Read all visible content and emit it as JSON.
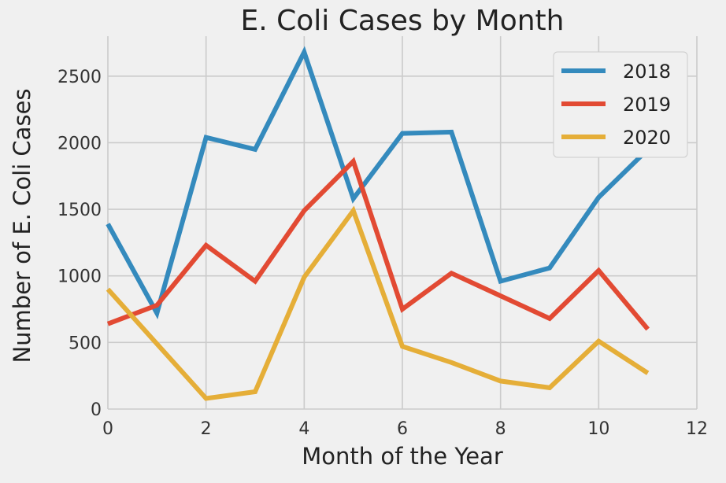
{
  "chart_data": {
    "type": "line",
    "title": "E. Coli Cases by Month",
    "xlabel": "Month of the Year",
    "ylabel": "Number of E. Coli Cases",
    "xlim": [
      0,
      12
    ],
    "ylim": [
      0,
      2800
    ],
    "xticks": [
      "0",
      "2",
      "4",
      "6",
      "8",
      "10",
      "12"
    ],
    "yticks": [
      "0",
      "500",
      "1000",
      "1500",
      "2000",
      "2500"
    ],
    "grid": true,
    "legend_position": "top-right",
    "x": [
      0,
      1,
      2,
      3,
      4,
      5,
      6,
      7,
      8,
      9,
      10,
      11
    ],
    "series": [
      {
        "name": "2018",
        "color": "#348ABD",
        "values": [
          1390,
          720,
          2040,
          1950,
          2680,
          1580,
          2070,
          2080,
          960,
          1060,
          1590,
          1950
        ]
      },
      {
        "name": "2019",
        "color": "#E24A33",
        "values": [
          640,
          780,
          1230,
          960,
          1490,
          1860,
          750,
          1020,
          850,
          680,
          1040,
          600
        ]
      },
      {
        "name": "2020",
        "color": "#E5AE38",
        "values": [
          900,
          490,
          80,
          130,
          990,
          1490,
          470,
          350,
          210,
          160,
          510,
          270
        ]
      }
    ]
  }
}
